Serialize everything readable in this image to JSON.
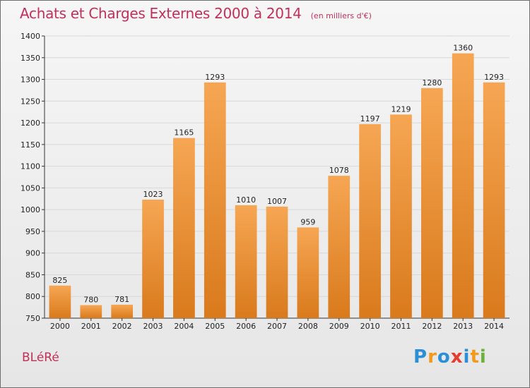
{
  "header": {
    "title": "Achats et Charges Externes 2000 à 2014",
    "subtitle": "(en milliers d'€)"
  },
  "location": "BLéRé",
  "logo": {
    "text": "Proxiti",
    "letters": [
      {
        "ch": "P",
        "color": "#2b8fd6"
      },
      {
        "ch": "r",
        "color": "#f39a1d"
      },
      {
        "ch": "o",
        "color": "#2b8fd6"
      },
      {
        "ch": "x",
        "color": "#e63b2e"
      },
      {
        "ch": "i",
        "color": "#2b8fd6"
      },
      {
        "ch": "t",
        "color": "#f39a1d"
      },
      {
        "ch": "i",
        "color": "#6bb13a"
      }
    ]
  },
  "colors": {
    "title": "#c2305a",
    "bar_top": "#f6a653",
    "bar_bottom": "#d97a1c",
    "grid": "#d8d8d8"
  },
  "chart_data": {
    "type": "bar",
    "categories": [
      "2000",
      "2001",
      "2002",
      "2003",
      "2004",
      "2005",
      "2006",
      "2007",
      "2008",
      "2009",
      "2010",
      "2011",
      "2012",
      "2013",
      "2014"
    ],
    "values": [
      825,
      780,
      781,
      1023,
      1165,
      1293,
      1010,
      1007,
      959,
      1078,
      1197,
      1219,
      1280,
      1360,
      1293
    ],
    "ylim": [
      750,
      1400
    ],
    "yticks": [
      750,
      800,
      850,
      900,
      950,
      1000,
      1050,
      1100,
      1150,
      1200,
      1250,
      1300,
      1350,
      1400
    ],
    "grid": true,
    "data_labels": true
  }
}
